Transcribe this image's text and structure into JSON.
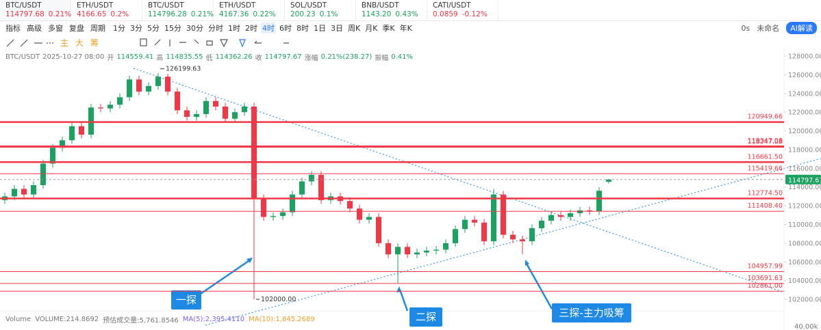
{
  "tabs": [
    {
      "symbol": "BTC/USDT",
      "price": "114797.68",
      "change": "0.21%",
      "color": "#f23645"
    },
    {
      "symbol": "ETH/USDT",
      "price": "4166.65",
      "change": "0.2%",
      "color": "#f23645"
    },
    {
      "symbol": "BTC/USDT",
      "price": "114796.28",
      "change": "0.21%",
      "color": "#1aa260"
    },
    {
      "symbol": "ETH/USDT",
      "price": "4167.36",
      "change": "0.22%",
      "color": "#1aa260"
    },
    {
      "symbol": "SOL/USDT",
      "price": "200.23",
      "change": "0.1%",
      "color": "#1aa260"
    },
    {
      "symbol": "BNB/USDT",
      "price": "1143.20",
      "change": "0.43%",
      "color": "#1aa260"
    },
    {
      "symbol": "CATI/USDT",
      "price": "0.0859",
      "change": "-0.12%",
      "color": "#f23645"
    }
  ],
  "toolbar": {
    "items": [
      "指标",
      "高级",
      "多窗",
      "复盘",
      "周期"
    ],
    "periods": [
      "1分",
      "3分",
      "5分",
      "15分",
      "30分",
      "分时",
      "1时",
      "2时",
      "4时",
      "6时",
      "8时",
      "1日",
      "3日",
      "周K",
      "月K",
      "季K",
      "年K"
    ],
    "selected_period": "4时",
    "right": [
      "0s",
      "未命名"
    ],
    "ai_button": "AI解读"
  },
  "drawing_tools": [
    "主",
    "大",
    "筹"
  ],
  "info": {
    "symbol": "BTC/USDT",
    "datetime": "2025-10-27 08:00",
    "open_label": "开",
    "high_label": "高",
    "low_label": "低",
    "close_label": "收",
    "change_label": "涨幅",
    "change": "0.21%(238.27)",
    "amplitude_label": "振幅",
    "amplitude": "0.41%"
  },
  "volume": {
    "name": "Volume",
    "items": [
      "VOLUME:214.8692",
      "预估成交量:5,761.8546",
      "MA(5):2,395.4110",
      "MA(10):1,645.2689"
    ],
    "axis_label": "40.00k"
  },
  "chart_data": {
    "type": "candlestick",
    "up_color": "#1aa260",
    "down_color": "#f23645",
    "ylim": [
      100760,
      128880
    ],
    "yticks": [
      {
        "value": 128000,
        "label": "128000.00"
      },
      {
        "value": 126000,
        "label": "126000.00"
      },
      {
        "value": 124000,
        "label": "124000.00"
      },
      {
        "value": 122000,
        "label": "122000.00"
      },
      {
        "value": 120000,
        "label": "120000.00"
      },
      {
        "value": 118000,
        "label": "118000.00"
      },
      {
        "value": 116000,
        "label": "116000.00"
      },
      {
        "value": 114000,
        "label": "114000.00"
      },
      {
        "value": 112000,
        "label": "112000.00"
      },
      {
        "value": 110000,
        "label": "110000.00"
      },
      {
        "value": 108000,
        "label": "108000.00"
      },
      {
        "value": 106000,
        "label": "106000.00"
      },
      {
        "value": 104000,
        "label": "104000.00"
      },
      {
        "value": 102000,
        "label": "102000.00"
      }
    ],
    "open": [
      112600,
      113000,
      113800,
      113200,
      114200,
      116500,
      118200,
      119000,
      120500,
      119600,
      122500,
      122400,
      122800,
      123600,
      125500,
      124200,
      124800,
      125800,
      124200,
      122200,
      121500,
      121800,
      123200,
      122600,
      121300,
      122000,
      122600,
      112800,
      110800,
      110900,
      111300,
      113200,
      114600,
      115300,
      112600,
      113000,
      112500,
      111700,
      110500,
      110800,
      108000,
      106800,
      107600,
      106800,
      107000,
      107200,
      107300,
      108000,
      109500,
      110500,
      110200,
      108200,
      113200,
      108900,
      108400,
      108200,
      109600,
      110400,
      111000,
      110800,
      111200,
      111500,
      111400,
      114559.41
    ],
    "high": [
      113400,
      114200,
      114200,
      114600,
      116900,
      118600,
      119400,
      120900,
      120900,
      122900,
      122900,
      123200,
      124000,
      125900,
      125900,
      125200,
      126199.63,
      126100,
      124600,
      122600,
      122200,
      123600,
      123600,
      123000,
      122400,
      123000,
      123000,
      113200,
      111300,
      111700,
      113600,
      115000,
      115700,
      115700,
      113400,
      113400,
      112900,
      112100,
      111200,
      111200,
      108400,
      108000,
      108000,
      107400,
      107600,
      107700,
      108400,
      109900,
      110900,
      110900,
      110600,
      113800,
      113600,
      109300,
      108800,
      110000,
      110800,
      111400,
      111400,
      111600,
      111900,
      111900,
      114000,
      114835.55
    ],
    "low": [
      112200,
      112600,
      112800,
      112800,
      113800,
      116100,
      117800,
      118600,
      119200,
      119200,
      122000,
      122000,
      122400,
      123200,
      123800,
      123800,
      124400,
      123800,
      121800,
      121100,
      121100,
      121400,
      122200,
      120900,
      120900,
      121600,
      102000,
      110400,
      110400,
      110500,
      110900,
      112800,
      114200,
      112200,
      112200,
      112100,
      111300,
      110100,
      110100,
      107600,
      106400,
      103700,
      106400,
      106400,
      106600,
      106800,
      106900,
      107600,
      109100,
      109800,
      107800,
      107800,
      108500,
      108000,
      106800,
      107800,
      109200,
      110000,
      110400,
      110400,
      110800,
      111000,
      111000,
      114362.26
    ],
    "close": [
      113000,
      113800,
      113200,
      114200,
      116500,
      118200,
      119000,
      120500,
      119600,
      122500,
      122400,
      122800,
      123600,
      125500,
      124200,
      124800,
      125800,
      124200,
      122200,
      121500,
      121800,
      123200,
      122600,
      121300,
      122000,
      122600,
      112800,
      110800,
      110900,
      111300,
      113200,
      114600,
      115300,
      112600,
      113000,
      112500,
      111700,
      110500,
      110800,
      108000,
      106800,
      107600,
      106800,
      107000,
      107200,
      107300,
      108000,
      109500,
      110500,
      110200,
      108200,
      113200,
      108900,
      108400,
      108200,
      109600,
      110400,
      111000,
      110800,
      111200,
      111500,
      111400,
      113600,
      114797.67
    ],
    "levels": [
      {
        "value": 120949.66,
        "line_width": 2.5
      },
      {
        "value": 118347.08,
        "line_width": 2.5
      },
      {
        "value": 118247.08,
        "line_width": 1
      },
      {
        "value": {
          "value": 116661.5,
          "label": "116661.50"
        },
        "line_width": 2.5
      },
      {
        "value": 115419.66,
        "line_width": 1
      },
      {
        "value": {
          "value": 112774.5,
          "label": "112774.50"
        },
        "line_width": 2.5
      },
      {
        "value": {
          "value": 111408.4,
          "label": "111408.40"
        },
        "line_width": 1
      },
      {
        "value": 104957.99,
        "line_width": 1
      },
      {
        "value": 103691.63,
        "line_width": 1
      },
      {
        "value": {
          "value": 102861,
          "label": "102861.00"
        },
        "line_width": 1
      }
    ],
    "level_color": "#f23645",
    "peak_label": "126199.63",
    "trough_label": "102000.00",
    "callouts": [
      "一探",
      "二探",
      "三探-主力吸筹"
    ]
  }
}
